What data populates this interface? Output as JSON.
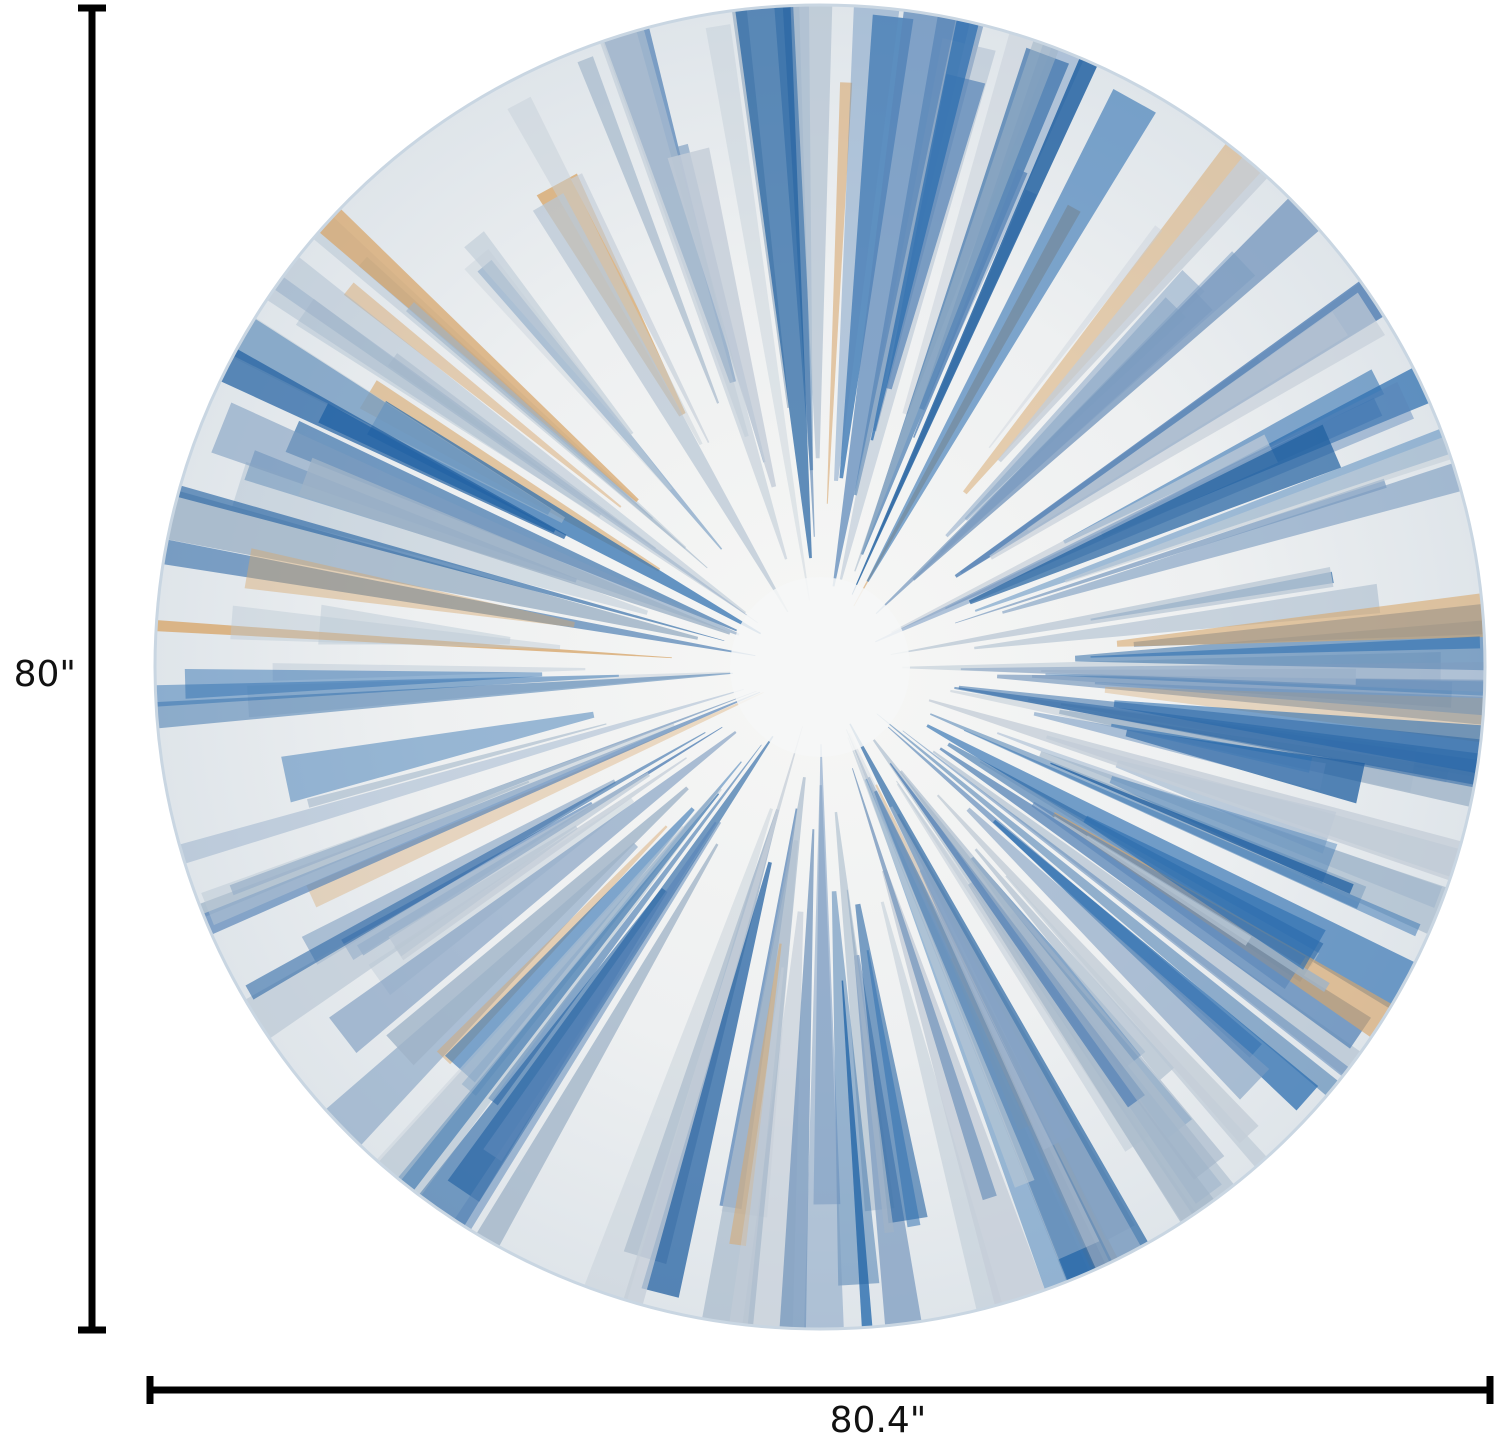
{
  "dimensions": {
    "height": "80\"",
    "width": "80.4\""
  }
}
